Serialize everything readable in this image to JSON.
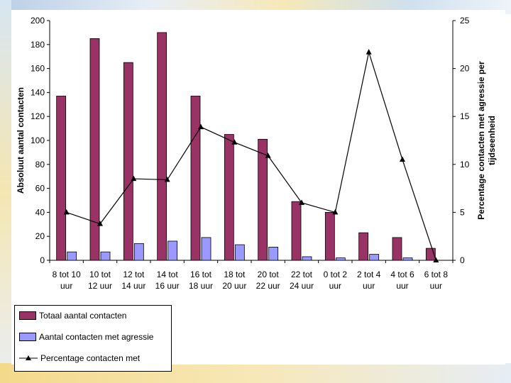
{
  "chart_data": {
    "type": "bar",
    "categories": [
      [
        "8 tot 10",
        "uur"
      ],
      [
        "10 tot",
        "12 uur"
      ],
      [
        "12 tot",
        "14 uur"
      ],
      [
        "14 tot",
        "16 uur"
      ],
      [
        "16 tot",
        "18 uur"
      ],
      [
        "18 tot",
        "20 uur"
      ],
      [
        "20 tot",
        "22 uur"
      ],
      [
        "22 tot",
        "24 uur"
      ],
      [
        "0 tot 2",
        "uur"
      ],
      [
        "2 tot 4",
        "uur"
      ],
      [
        "4 tot 6",
        "uur"
      ],
      [
        "6 tot 8",
        "uur"
      ]
    ],
    "series": [
      {
        "name": "Totaal aantal contacten",
        "type": "bar",
        "axis": "left",
        "color": "#993366",
        "values": [
          137,
          185,
          165,
          190,
          137,
          105,
          101,
          49,
          40,
          23,
          19,
          10
        ]
      },
      {
        "name": "Aantal contacten met agressie",
        "type": "bar",
        "axis": "left",
        "color": "#9999ff",
        "values": [
          7,
          7,
          14,
          16,
          19,
          13,
          11,
          3,
          2,
          5,
          2,
          0
        ]
      },
      {
        "name": "Percentage contacten met",
        "type": "line",
        "axis": "right",
        "color": "#000000",
        "values": [
          5.0,
          3.8,
          8.5,
          8.4,
          13.9,
          12.3,
          10.9,
          6.0,
          5.0,
          21.7,
          10.5,
          0
        ]
      }
    ],
    "ylabel": "Absoluut aantal contacten",
    "y2label": [
      "Percentage contacten met agressie per",
      "tijdseenheid"
    ],
    "ylim": [
      0,
      200
    ],
    "y2lim": [
      0,
      25
    ],
    "yticks": [
      0,
      20,
      40,
      60,
      80,
      100,
      120,
      140,
      160,
      180,
      200
    ],
    "y2ticks": [
      0,
      5,
      10,
      15,
      20,
      25
    ],
    "grid": false,
    "legend": "bottom-left"
  }
}
